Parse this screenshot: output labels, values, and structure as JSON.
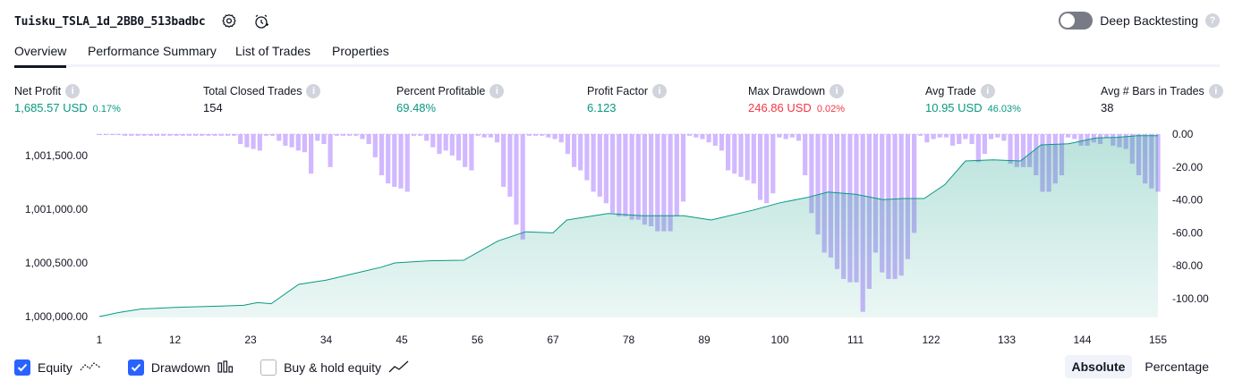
{
  "header": {
    "strategy_name": "Tuisku_TSLA_1d_2BB0_513badbc",
    "deep_backtesting_label": "Deep Backtesting",
    "deep_backtesting_on": false,
    "icons": [
      "gear-icon",
      "alert-clock-icon",
      "help-icon"
    ]
  },
  "tabs": [
    {
      "label": "Overview",
      "active": true
    },
    {
      "label": "Performance Summary",
      "active": false
    },
    {
      "label": "List of Trades",
      "active": false
    },
    {
      "label": "Properties",
      "active": false
    }
  ],
  "metrics": [
    {
      "label": "Net Profit",
      "value": "1,685.57 USD",
      "pct": "0.17%",
      "color": "#089981"
    },
    {
      "label": "Total Closed Trades",
      "value": "154",
      "pct": "",
      "color": "#131722"
    },
    {
      "label": "Percent Profitable",
      "value": "69.48%",
      "pct": "",
      "color": "#089981"
    },
    {
      "label": "Profit Factor",
      "value": "6.123",
      "pct": "",
      "color": "#089981"
    },
    {
      "label": "Max Drawdown",
      "value": "246.86 USD",
      "pct": "0.02%",
      "color": "#f23645"
    },
    {
      "label": "Avg Trade",
      "value": "10.95 USD",
      "pct": "46.03%",
      "color": "#089981"
    },
    {
      "label": "Avg # Bars in Trades",
      "value": "38",
      "pct": "",
      "color": "#131722"
    }
  ],
  "chart_data": {
    "type": "area",
    "left_axis": {
      "ticks": [
        1000000,
        1000500,
        1001000,
        1001500
      ],
      "tick_labels": [
        "1,000,000.00",
        "1,000,500.00",
        "1,001,000.00",
        "1,001,500.00"
      ],
      "range": [
        1000000,
        1001685.57
      ]
    },
    "right_axis": {
      "ticks": [
        0,
        -20,
        -40,
        -60,
        -80,
        -100
      ],
      "tick_labels": [
        "0.00",
        "-20.00",
        "-40.00",
        "-60.00",
        "-80.00",
        "-100.00"
      ],
      "range": [
        -112,
        0
      ]
    },
    "x_axis": {
      "range": [
        1,
        155
      ],
      "ticks": [
        1,
        12,
        23,
        34,
        45,
        56,
        67,
        78,
        89,
        100,
        111,
        122,
        133,
        144,
        155
      ]
    },
    "equity": {
      "name": "Equity",
      "color": "#089981",
      "points": [
        [
          1,
          1000000
        ],
        [
          4,
          1000040
        ],
        [
          7,
          1000070
        ],
        [
          12,
          1000085
        ],
        [
          17,
          1000095
        ],
        [
          22,
          1000105
        ],
        [
          24,
          1000130
        ],
        [
          26,
          1000120
        ],
        [
          30,
          1000300
        ],
        [
          34,
          1000340
        ],
        [
          38,
          1000400
        ],
        [
          42,
          1000460
        ],
        [
          44,
          1000500
        ],
        [
          49,
          1000520
        ],
        [
          54,
          1000525
        ],
        [
          59,
          1000705
        ],
        [
          63,
          1000790
        ],
        [
          67,
          1000780
        ],
        [
          69,
          1000900
        ],
        [
          75,
          1000960
        ],
        [
          80,
          1000940
        ],
        [
          86,
          1000940
        ],
        [
          90,
          1000900
        ],
        [
          96,
          1000990
        ],
        [
          100,
          1001060
        ],
        [
          104,
          1001110
        ],
        [
          107,
          1001160
        ],
        [
          111,
          1001140
        ],
        [
          115,
          1001090
        ],
        [
          118,
          1001100
        ],
        [
          121,
          1001100
        ],
        [
          124,
          1001230
        ],
        [
          127,
          1001450
        ],
        [
          131,
          1001460
        ],
        [
          135,
          1001450
        ],
        [
          138,
          1001600
        ],
        [
          142,
          1001610
        ],
        [
          146,
          1001665
        ],
        [
          149,
          1001670
        ],
        [
          152,
          1001686
        ],
        [
          155,
          1001686
        ]
      ]
    },
    "drawdown": {
      "name": "Drawdown",
      "color": "#b388ff",
      "values": [
        -0.5,
        -0.5,
        -0.5,
        -0.5,
        -1,
        -1,
        -1,
        -1,
        -1,
        -1,
        -1,
        -1,
        -1,
        -1,
        -1,
        -1,
        -1,
        -1,
        -1,
        -1,
        -1,
        -1,
        -6,
        -8,
        -9,
        -10,
        -1,
        -1,
        -4,
        -7,
        -8,
        -10,
        -11,
        -24,
        -4,
        -6,
        -20,
        -1,
        -1,
        -1,
        -1,
        -3,
        -6,
        -14,
        -25,
        -30,
        -32,
        -33,
        -35,
        -1,
        -1,
        -4,
        -8,
        -12,
        -10,
        -13,
        -16,
        -20,
        -22,
        -1,
        -2,
        -2,
        -5,
        -32,
        -38,
        -55,
        -64,
        -1,
        -1,
        -1,
        -2,
        -3,
        -5,
        -12,
        -20,
        -22,
        -28,
        -35,
        -38,
        -42,
        -48,
        -50,
        -50,
        -52,
        -52,
        -55,
        -56,
        -59,
        -59,
        -59,
        -50,
        -41,
        -1,
        -2,
        -3,
        -5,
        -7,
        -10,
        -22,
        -24,
        -26,
        -28,
        -30,
        -40,
        -42,
        -36,
        -2,
        -3,
        -2,
        -4,
        -25,
        -48,
        -61,
        -72,
        -75,
        -82,
        -88,
        -90,
        -90,
        -108,
        -94,
        -72,
        -84,
        -88,
        -88,
        -86,
        -76,
        -60,
        -1,
        -5,
        -3,
        -2,
        -2,
        -7,
        -6,
        -3,
        -6,
        -17,
        -12,
        -3,
        -2,
        -4,
        -18,
        -20,
        -20,
        -20,
        -25,
        -35,
        -35,
        -30,
        -25,
        -2,
        -3,
        -7,
        -7,
        -5,
        -6,
        -2,
        -7,
        -8,
        -9,
        -18,
        -25,
        -30,
        -33,
        -35
      ]
    },
    "buy_hold_visible": false
  },
  "legend": [
    {
      "label": "Equity",
      "checked": true,
      "icon": "equity-line-icon"
    },
    {
      "label": "Drawdown",
      "checked": true,
      "icon": "drawdown-bars-icon"
    },
    {
      "label": "Buy & hold equity",
      "checked": false,
      "icon": "buy-hold-line-icon"
    }
  ],
  "modes": [
    {
      "label": "Absolute",
      "active": true
    },
    {
      "label": "Percentage",
      "active": false
    }
  ]
}
